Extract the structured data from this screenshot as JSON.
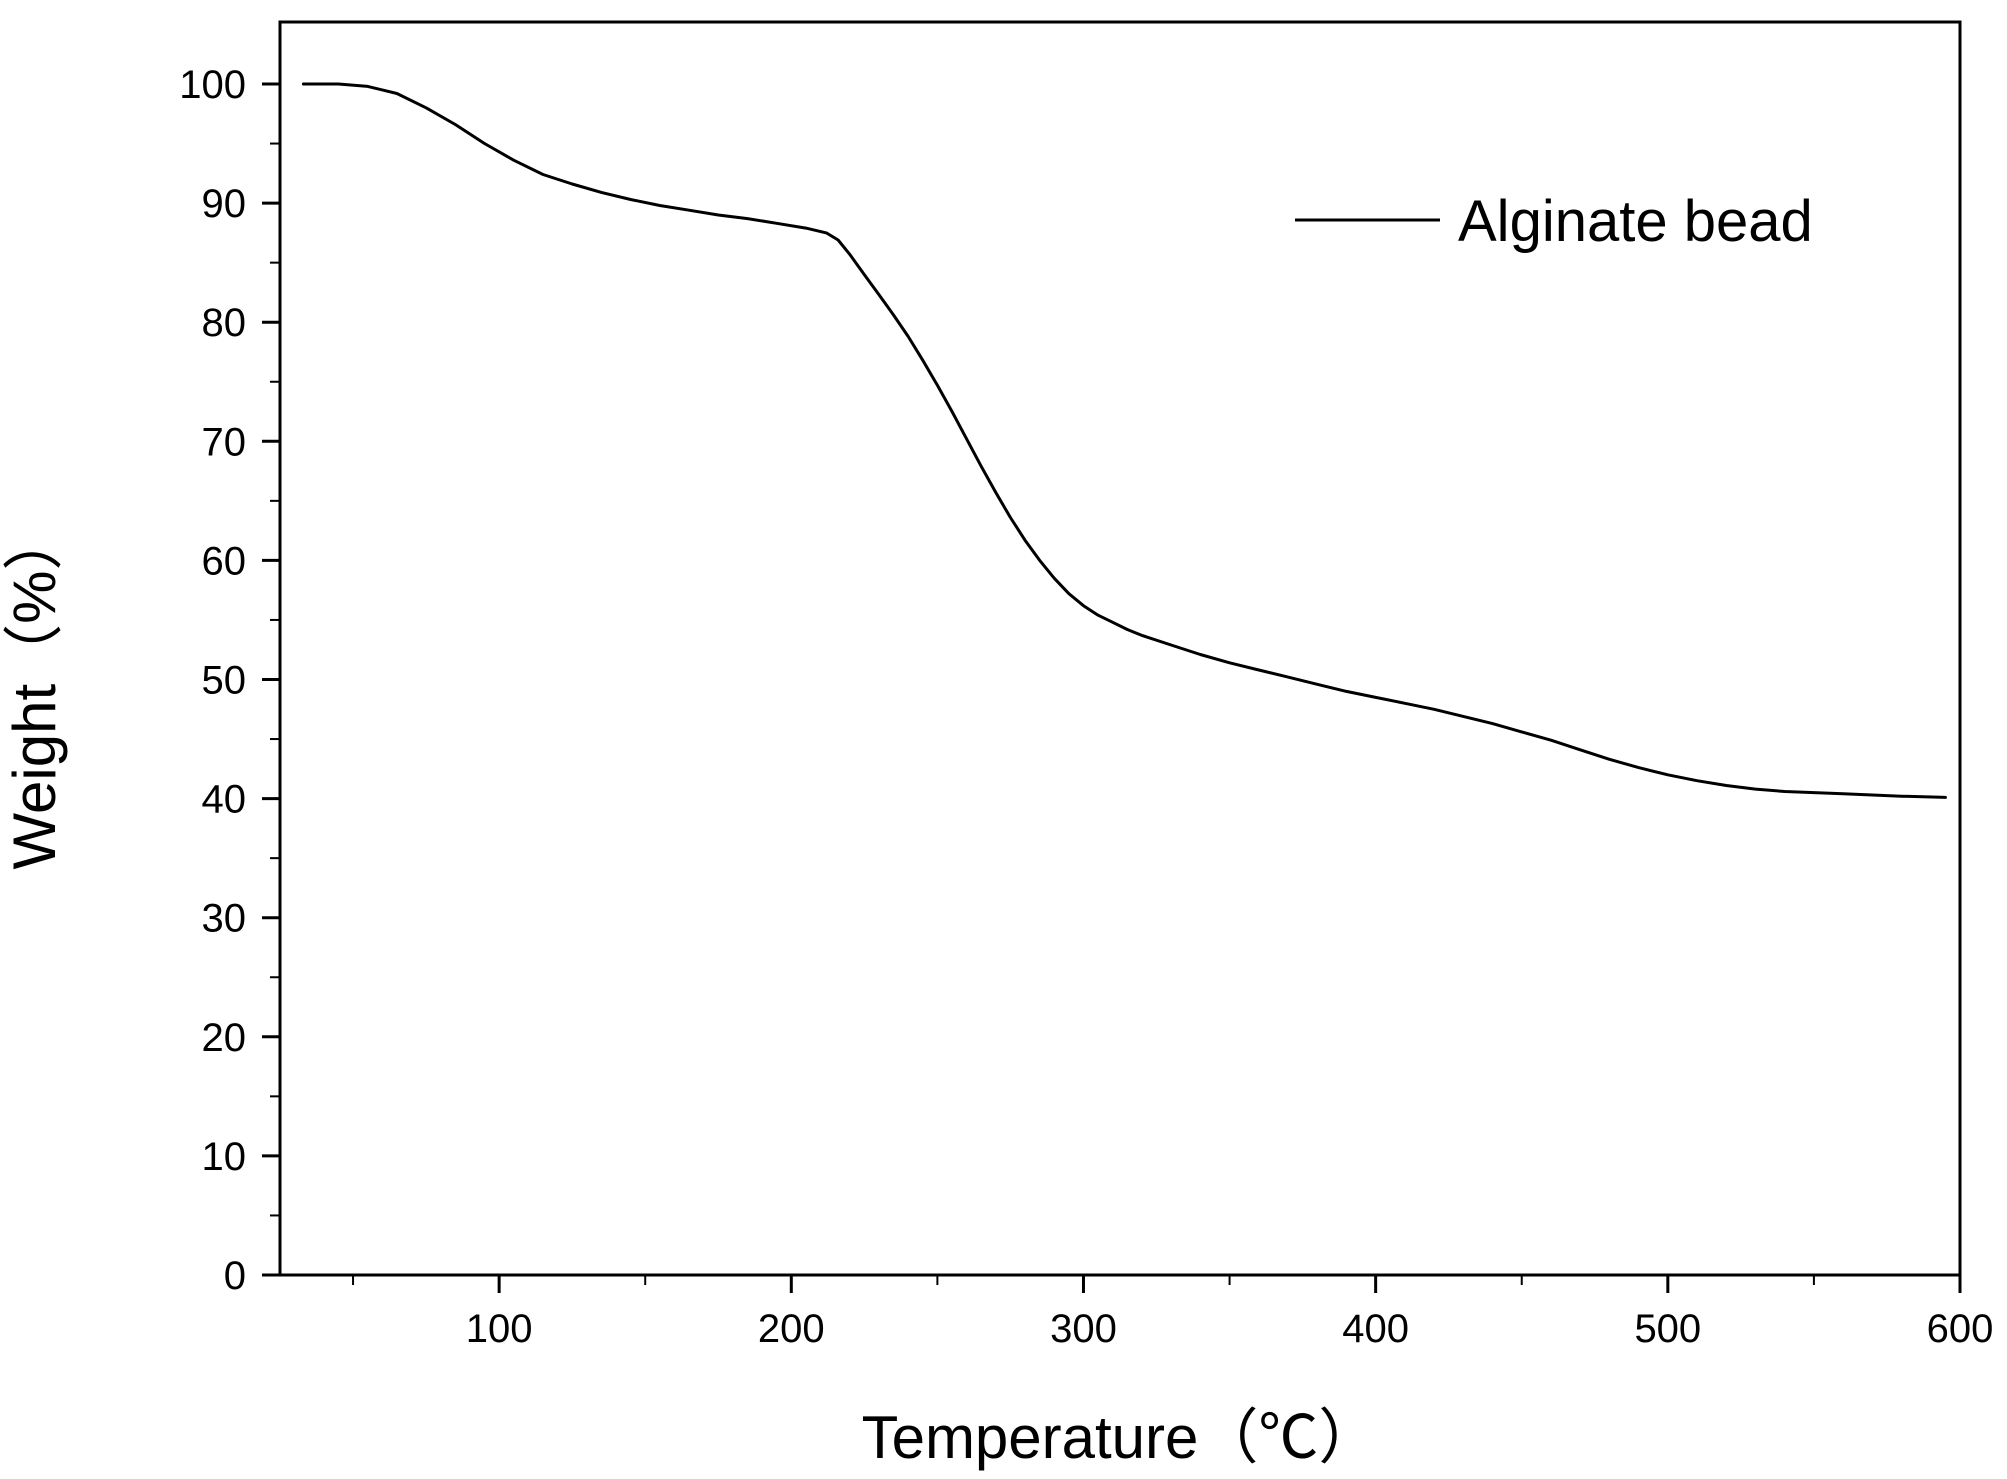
{
  "chart_data": {
    "type": "line",
    "title": "",
    "xlabel": "Temperature（℃）",
    "ylabel": "Weight（%）",
    "xlim": [
      25,
      600
    ],
    "ylim": [
      0,
      105
    ],
    "x_ticks": [
      100,
      200,
      300,
      400,
      500,
      600
    ],
    "x_tick_labels": [
      "100",
      "200",
      "300",
      "400",
      "500",
      "600"
    ],
    "x_minor_ticks": [
      50,
      150,
      250,
      350,
      450,
      550
    ],
    "y_ticks": [
      0,
      10,
      20,
      30,
      40,
      50,
      60,
      70,
      80,
      90,
      100
    ],
    "y_tick_labels": [
      "0",
      "10",
      "20",
      "30",
      "40",
      "50",
      "60",
      "70",
      "80",
      "90",
      "100"
    ],
    "y_minor_ticks": [
      5,
      15,
      25,
      35,
      45,
      55,
      65,
      75,
      85,
      95
    ],
    "grid": false,
    "legend_position": "top-right",
    "series": [
      {
        "name": "Alginate bead",
        "color": "#000000",
        "x": [
          33,
          45,
          55,
          65,
          75,
          85,
          95,
          105,
          115,
          125,
          135,
          145,
          155,
          165,
          175,
          185,
          195,
          205,
          212,
          216,
          220,
          225,
          230,
          235,
          240,
          245,
          250,
          255,
          260,
          265,
          270,
          275,
          280,
          285,
          290,
          295,
          300,
          305,
          310,
          315,
          320,
          330,
          340,
          350,
          360,
          370,
          380,
          390,
          400,
          410,
          420,
          430,
          440,
          450,
          460,
          470,
          480,
          490,
          500,
          510,
          520,
          530,
          540,
          550,
          560,
          570,
          580,
          595
        ],
        "y": [
          100,
          100,
          99.8,
          99.2,
          98.0,
          96.6,
          95.0,
          93.6,
          92.4,
          91.6,
          90.9,
          90.3,
          89.8,
          89.4,
          89.0,
          88.7,
          88.3,
          87.9,
          87.5,
          86.9,
          85.7,
          84.0,
          82.3,
          80.6,
          78.8,
          76.8,
          74.7,
          72.5,
          70.2,
          67.9,
          65.7,
          63.6,
          61.7,
          60.0,
          58.5,
          57.2,
          56.2,
          55.4,
          54.8,
          54.2,
          53.7,
          52.9,
          52.1,
          51.4,
          50.8,
          50.2,
          49.6,
          49.0,
          48.5,
          48.0,
          47.5,
          46.9,
          46.3,
          45.6,
          44.9,
          44.1,
          43.3,
          42.6,
          42.0,
          41.5,
          41.1,
          40.8,
          40.6,
          40.5,
          40.4,
          40.3,
          40.2,
          40.1
        ]
      }
    ]
  }
}
